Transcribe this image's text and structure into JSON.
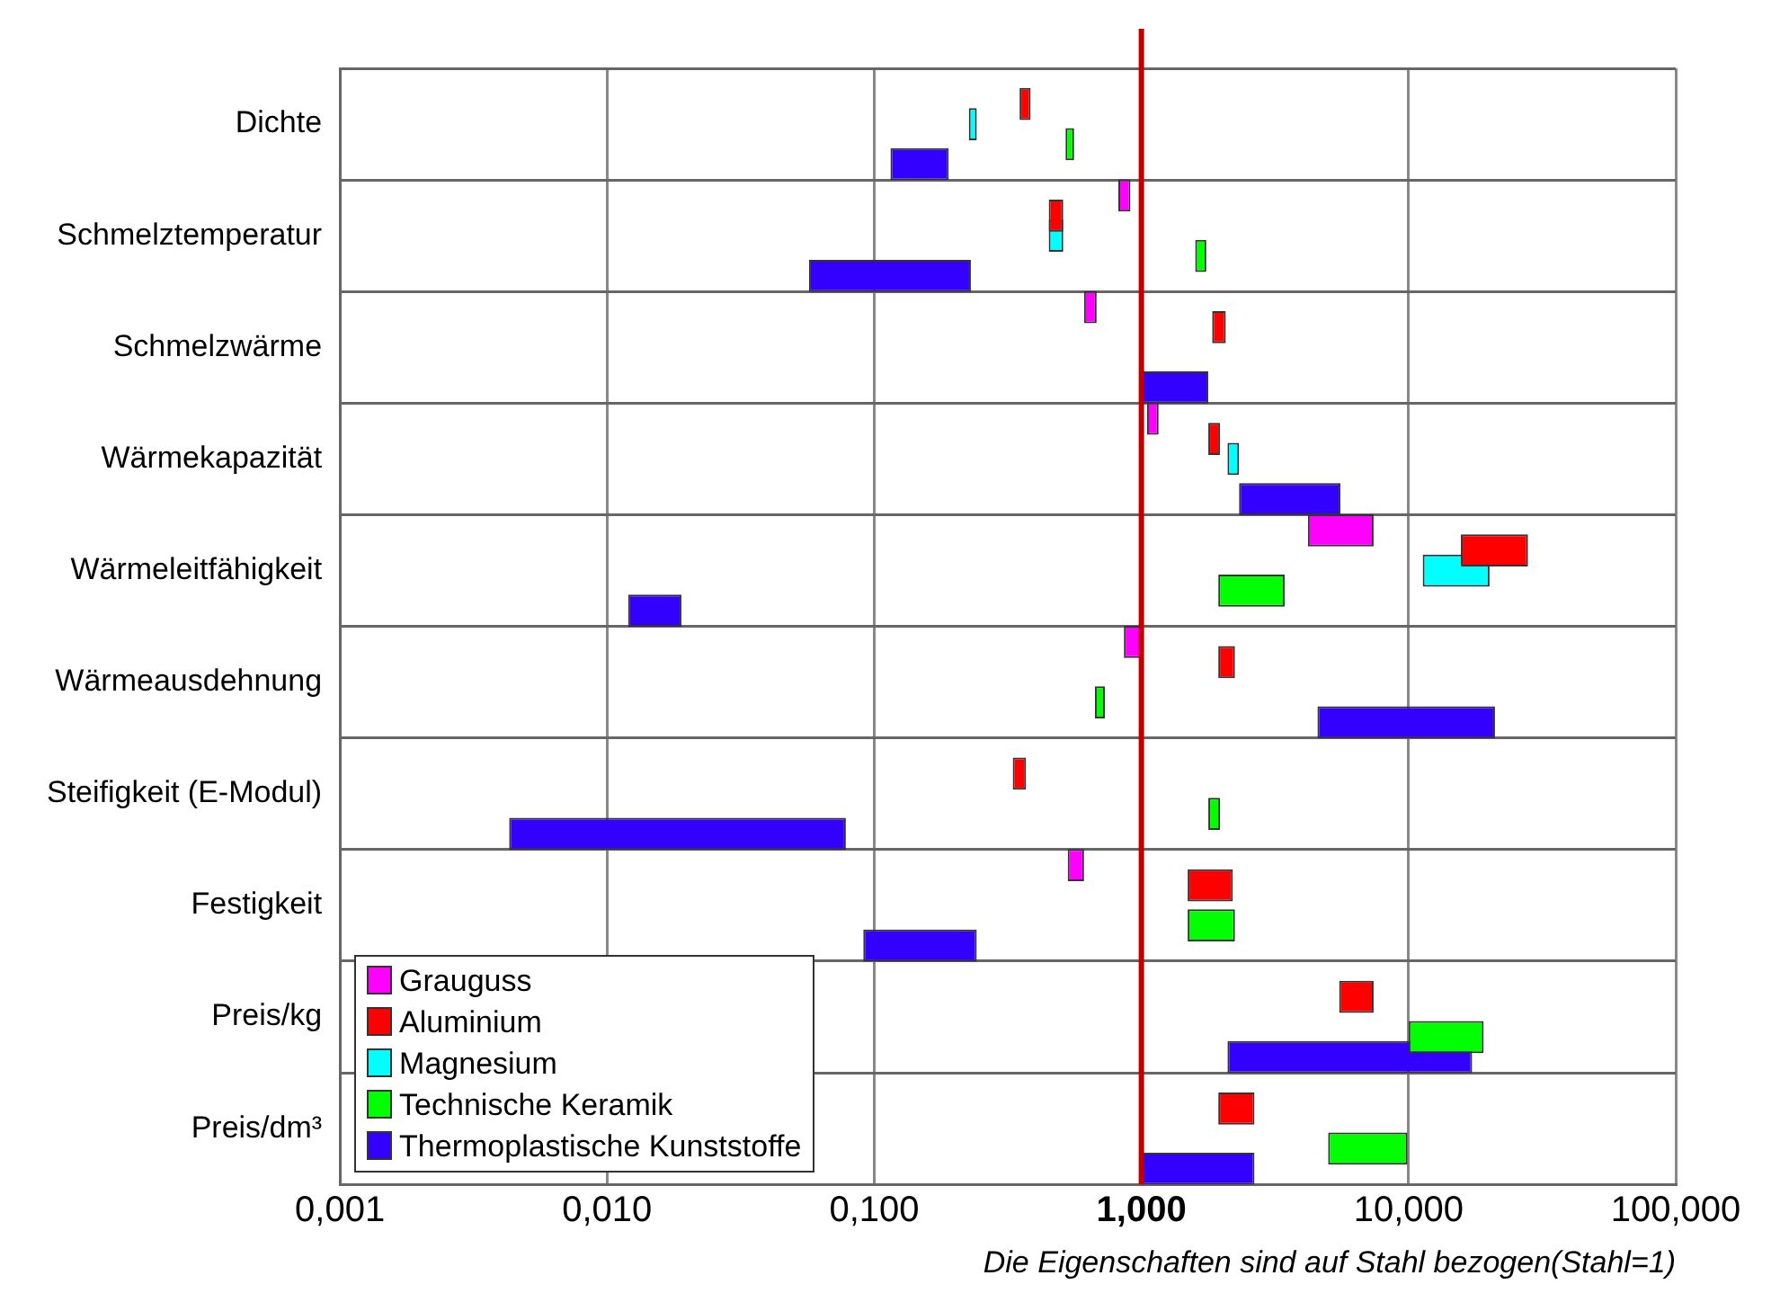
{
  "chart_data": {
    "type": "bar",
    "orientation": "horizontal",
    "log": "x",
    "grid": true,
    "legend": "bottom left",
    "xlabel": "Die Eigenschaften sind auf Stahl bezogen(Stahl=1)",
    "categories": [
      "Dichte",
      "Schmelztemperatur",
      "Schmelzwärme",
      "Wärmekapazität",
      "Wärmeleitfähigkeit",
      "Wärmeausdehnung",
      "Steifigkeit (E-Modul)",
      "Festigkeit",
      "Preis/kg",
      "Preis/dm³"
    ],
    "xlim": [
      0.001,
      100
    ],
    "xticks": [
      {
        "value": 0.001,
        "label": "0,001"
      },
      {
        "value": 0.01,
        "label": "0,010"
      },
      {
        "value": 0.1,
        "label": "0,100"
      },
      {
        "value": 1,
        "label": "1,000"
      },
      {
        "value": 10,
        "label": "10,000"
      },
      {
        "value": 100,
        "label": "100,000"
      }
    ],
    "ref_lines": [
      {
        "axis": "x",
        "value": 1,
        "color": "#c00000"
      }
    ],
    "series": [
      {
        "name": "Grauguss",
        "color": "#ff00ff",
        "base": [
          null,
          0.82,
          0.61,
          1.05,
          4.2,
          0.86,
          null,
          0.53,
          null,
          null
        ],
        "values": [
          null,
          0.09,
          0.07,
          0.11,
          3.2,
          0.14,
          null,
          0.08,
          null,
          null
        ]
      },
      {
        "name": "Aluminium",
        "color": "#ff0000",
        "base": [
          0.35,
          0.45,
          1.84,
          1.78,
          15.7,
          1.94,
          0.33,
          1.49,
          5.5,
          1.94
        ],
        "values": [
          0.035,
          0.06,
          0.23,
          0.19,
          12.3,
          0.3,
          0.04,
          0.71,
          1.9,
          0.71
        ]
      },
      {
        "name": "Magnesium",
        "color": "#00ffff",
        "base": [
          0.226,
          0.45,
          null,
          2.1,
          11.3,
          null,
          null,
          null,
          null,
          null
        ],
        "values": [
          0.016,
          0.06,
          null,
          0.22,
          8.8,
          null,
          null,
          null,
          null,
          null
        ]
      },
      {
        "name": "Technische Keramik",
        "color": "#00ff00",
        "base": [
          0.52,
          1.59,
          null,
          null,
          1.94,
          0.67,
          1.78,
          1.49,
          10,
          5.0
        ],
        "values": [
          0.04,
          0.16,
          null,
          null,
          1.5,
          0.06,
          0.19,
          0.75,
          9.1,
          4.9
        ]
      },
      {
        "name": "Thermoplastische Kunststoffe",
        "color": "#3300ff",
        "base": [
          0.115,
          0.057,
          1.0,
          2.32,
          0.012,
          4.56,
          0.0043,
          0.091,
          2.1,
          1.0
        ],
        "values": [
          0.075,
          0.173,
          0.78,
          3.24,
          0.007,
          16.5,
          0.074,
          0.151,
          15.2,
          1.65
        ]
      }
    ]
  }
}
